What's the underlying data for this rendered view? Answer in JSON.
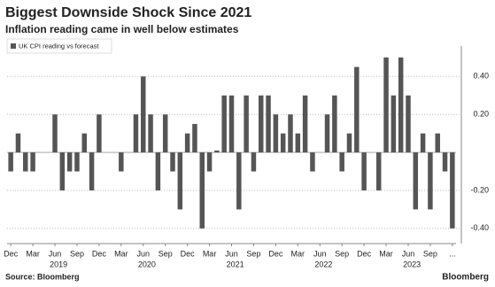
{
  "chart_data": {
    "type": "bar",
    "title": "Biggest Downside Shock Since 2021",
    "subtitle": "Inflation reading came in well below estimates",
    "source": "Source: Bloomberg",
    "brand": "Bloomberg",
    "color": "#555555",
    "legend": "top-left",
    "grid": true,
    "series": [
      {
        "name": "UK CPI reading vs forecast",
        "color": "#555555",
        "values": [
          -0.1,
          0.1,
          -0.1,
          -0.1,
          0,
          0,
          0.2,
          -0.2,
          -0.1,
          -0.1,
          0.1,
          -0.2,
          0.2,
          0,
          0,
          -0.1,
          0,
          0.2,
          0.4,
          0.2,
          -0.2,
          0.2,
          -0.1,
          -0.3,
          0.1,
          0.15,
          -0.4,
          -0.1,
          0.01,
          0.3,
          0.3,
          -0.3,
          0.3,
          -0.1,
          0.3,
          0.3,
          0.2,
          0.1,
          0.2,
          0.1,
          0.3,
          -0.1,
          0,
          0.2,
          0.3,
          -0.1,
          0.1,
          0.45,
          -0.2,
          0,
          -0.2,
          0.5,
          0.3,
          0.5,
          0.3,
          -0.3,
          0.1,
          -0.3,
          0.1,
          -0.1,
          -0.4
        ]
      }
    ],
    "categories": [
      "Dec",
      null,
      null,
      "Mar",
      null,
      null,
      "Jun",
      null,
      null,
      "Sep",
      null,
      null,
      "Dec",
      null,
      null,
      "Mar",
      null,
      null,
      "Jun",
      null,
      null,
      "Sep",
      null,
      null,
      "Dec",
      null,
      null,
      "Mar",
      null,
      null,
      "Jun",
      null,
      null,
      "Sep",
      null,
      null,
      "Dec",
      null,
      null,
      "Mar",
      null,
      null,
      "Jun",
      null,
      null,
      "Sep",
      null,
      null,
      "Dec",
      null,
      null,
      "Mar",
      null,
      null,
      "Jun",
      null,
      null,
      "Sep",
      null,
      null,
      "..."
    ],
    "years": [
      "2019",
      "2020",
      "2021",
      "2022",
      "2023"
    ],
    "ylim": [
      -0.48,
      0.56
    ],
    "yticks": [
      {
        "value": -0.4,
        "label": "-0.40"
      },
      {
        "value": -0.2,
        "label": "-0.20"
      },
      0,
      {
        "value": 0.2,
        "label": "0.20"
      },
      {
        "value": 0.4,
        "label": "0.40"
      }
    ]
  }
}
